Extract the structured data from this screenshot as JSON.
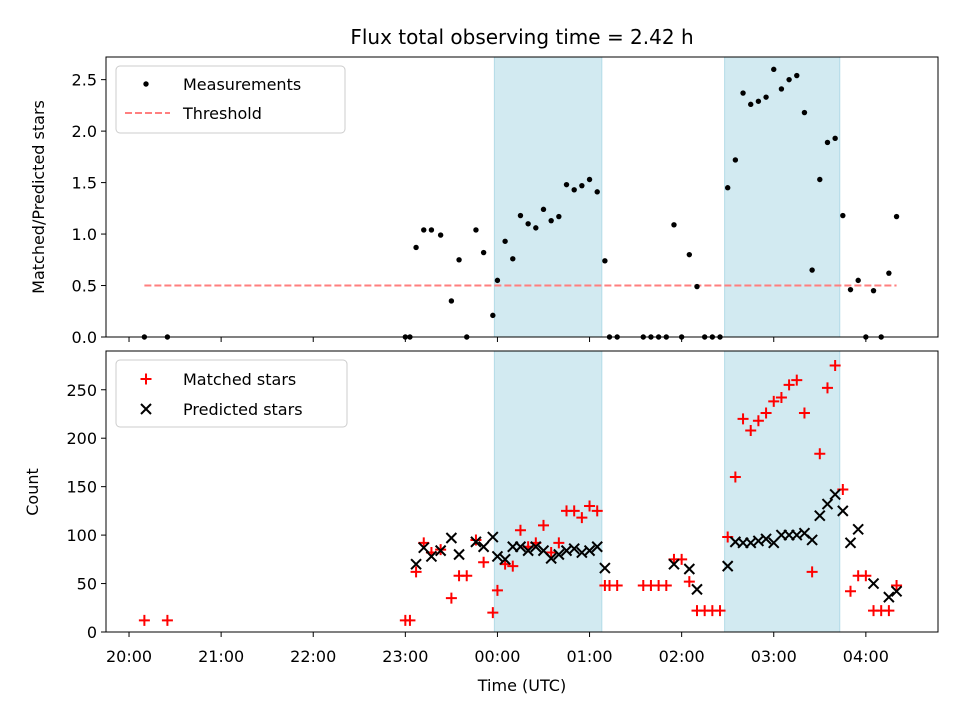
{
  "title": "Flux total observing time = 2.42 h",
  "colors": {
    "band": "#add8e6",
    "measurement": "#000000",
    "threshold": "#ff7f7f",
    "matched": "#ff0000",
    "predicted": "#000000"
  },
  "chart_data": [
    {
      "type": "scatter",
      "panel": "top",
      "ylabel": "Matched/Predicted stars",
      "ylim": [
        0,
        2.72
      ],
      "yticks": [
        "0.0",
        "0.5",
        "1.0",
        "1.5",
        "2.0",
        "2.5"
      ],
      "xlim": [
        "19:45",
        "04:47"
      ],
      "grid": false,
      "legend_position": "upper-left",
      "legend": [
        "Measurements",
        "Threshold"
      ],
      "threshold": {
        "name": "Threshold",
        "y": 0.5,
        "x_range": [
          "20:10",
          "04:20"
        ],
        "style": "dashed"
      },
      "shaded_ranges": [
        [
          "23:58",
          "01:08"
        ],
        [
          "02:28",
          "03:43"
        ]
      ],
      "series": [
        {
          "name": "Measurements",
          "marker": "dot",
          "points": [
            [
              "20:10",
              0.0
            ],
            [
              "20:25",
              0.0
            ],
            [
              "23:00",
              0.0
            ],
            [
              "23:03",
              0.0
            ],
            [
              "23:07",
              0.87
            ],
            [
              "23:12",
              1.04
            ],
            [
              "23:17",
              1.04
            ],
            [
              "23:23",
              0.99
            ],
            [
              "23:30",
              0.35
            ],
            [
              "23:35",
              0.75
            ],
            [
              "23:40",
              0.0
            ],
            [
              "23:46",
              1.04
            ],
            [
              "23:51",
              0.82
            ],
            [
              "23:57",
              0.21
            ],
            [
              "00:00",
              0.55
            ],
            [
              "00:05",
              0.93
            ],
            [
              "00:10",
              0.76
            ],
            [
              "00:15",
              1.18
            ],
            [
              "00:20",
              1.1
            ],
            [
              "00:25",
              1.06
            ],
            [
              "00:30",
              1.24
            ],
            [
              "00:35",
              1.13
            ],
            [
              "00:40",
              1.17
            ],
            [
              "00:45",
              1.48
            ],
            [
              "00:50",
              1.43
            ],
            [
              "00:55",
              1.47
            ],
            [
              "01:00",
              1.53
            ],
            [
              "01:05",
              1.41
            ],
            [
              "01:10",
              0.74
            ],
            [
              "01:13",
              0.0
            ],
            [
              "01:18",
              0.0
            ],
            [
              "01:35",
              0.0
            ],
            [
              "01:40",
              0.0
            ],
            [
              "01:45",
              0.0
            ],
            [
              "01:50",
              0.0
            ],
            [
              "01:55",
              1.09
            ],
            [
              "02:00",
              0.0
            ],
            [
              "02:05",
              0.8
            ],
            [
              "02:10",
              0.49
            ],
            [
              "02:15",
              0.0
            ],
            [
              "02:20",
              0.0
            ],
            [
              "02:25",
              0.0
            ],
            [
              "02:30",
              1.45
            ],
            [
              "02:35",
              1.72
            ],
            [
              "02:40",
              2.37
            ],
            [
              "02:45",
              2.26
            ],
            [
              "02:50",
              2.29
            ],
            [
              "02:55",
              2.33
            ],
            [
              "03:00",
              2.6
            ],
            [
              "03:05",
              2.41
            ],
            [
              "03:10",
              2.5
            ],
            [
              "03:15",
              2.54
            ],
            [
              "03:20",
              2.18
            ],
            [
              "03:25",
              0.65
            ],
            [
              "03:30",
              1.53
            ],
            [
              "03:35",
              1.89
            ],
            [
              "03:40",
              1.93
            ],
            [
              "03:45",
              1.18
            ],
            [
              "03:50",
              0.46
            ],
            [
              "03:55",
              0.55
            ],
            [
              "04:00",
              0.0
            ],
            [
              "04:05",
              0.45
            ],
            [
              "04:10",
              0.0
            ],
            [
              "04:15",
              0.62
            ],
            [
              "04:20",
              1.17
            ]
          ]
        }
      ]
    },
    {
      "type": "scatter",
      "panel": "bottom",
      "xlabel": "Time (UTC)",
      "ylabel": "Count",
      "ylim": [
        0,
        290
      ],
      "yticks": [
        "0",
        "50",
        "100",
        "150",
        "200",
        "250"
      ],
      "xlim": [
        "19:45",
        "04:47"
      ],
      "xticks": [
        "20:00",
        "21:00",
        "22:00",
        "23:00",
        "00:00",
        "01:00",
        "02:00",
        "03:00",
        "04:00"
      ],
      "grid": false,
      "legend_position": "upper-left",
      "legend": [
        "Matched stars",
        "Predicted stars"
      ],
      "shaded_ranges": [
        [
          "23:58",
          "01:08"
        ],
        [
          "02:28",
          "03:43"
        ]
      ],
      "series": [
        {
          "name": "Matched stars",
          "marker": "plus",
          "points": [
            [
              "20:10",
              12
            ],
            [
              "20:25",
              12
            ],
            [
              "23:00",
              12
            ],
            [
              "23:03",
              12
            ],
            [
              "23:07",
              62
            ],
            [
              "23:12",
              92
            ],
            [
              "23:17",
              82
            ],
            [
              "23:23",
              85
            ],
            [
              "23:30",
              35
            ],
            [
              "23:35",
              58
            ],
            [
              "23:40",
              58
            ],
            [
              "23:46",
              95
            ],
            [
              "23:51",
              72
            ],
            [
              "23:57",
              20
            ],
            [
              "00:00",
              43
            ],
            [
              "00:05",
              70
            ],
            [
              "00:10",
              68
            ],
            [
              "00:15",
              105
            ],
            [
              "00:20",
              88
            ],
            [
              "00:25",
              92
            ],
            [
              "00:30",
              110
            ],
            [
              "00:35",
              82
            ],
            [
              "00:40",
              92
            ],
            [
              "00:45",
              125
            ],
            [
              "00:50",
              125
            ],
            [
              "00:55",
              118
            ],
            [
              "01:00",
              130
            ],
            [
              "01:05",
              125
            ],
            [
              "01:10",
              48
            ],
            [
              "01:13",
              48
            ],
            [
              "01:18",
              48
            ],
            [
              "01:35",
              48
            ],
            [
              "01:40",
              48
            ],
            [
              "01:45",
              48
            ],
            [
              "01:50",
              48
            ],
            [
              "01:55",
              75
            ],
            [
              "02:00",
              75
            ],
            [
              "02:05",
              52
            ],
            [
              "02:10",
              22
            ],
            [
              "02:15",
              22
            ],
            [
              "02:20",
              22
            ],
            [
              "02:25",
              22
            ],
            [
              "02:30",
              98
            ],
            [
              "02:35",
              160
            ],
            [
              "02:40",
              220
            ],
            [
              "02:45",
              208
            ],
            [
              "02:50",
              218
            ],
            [
              "02:55",
              226
            ],
            [
              "03:00",
              238
            ],
            [
              "03:05",
              242
            ],
            [
              "03:10",
              255
            ],
            [
              "03:15",
              260
            ],
            [
              "03:20",
              226
            ],
            [
              "03:25",
              62
            ],
            [
              "03:30",
              184
            ],
            [
              "03:35",
              252
            ],
            [
              "03:40",
              275
            ],
            [
              "03:45",
              147
            ],
            [
              "03:50",
              42
            ],
            [
              "03:55",
              58
            ],
            [
              "04:00",
              58
            ],
            [
              "04:05",
              22
            ],
            [
              "04:10",
              22
            ],
            [
              "04:15",
              22
            ],
            [
              "04:20",
              48
            ]
          ]
        },
        {
          "name": "Predicted stars",
          "marker": "x",
          "points": [
            [
              "23:07",
              70
            ],
            [
              "23:12",
              87
            ],
            [
              "23:17",
              78
            ],
            [
              "23:23",
              84
            ],
            [
              "23:30",
              97
            ],
            [
              "23:35",
              80
            ],
            [
              "23:46",
              93
            ],
            [
              "23:51",
              88
            ],
            [
              "23:57",
              98
            ],
            [
              "00:00",
              78
            ],
            [
              "00:05",
              75
            ],
            [
              "00:10",
              88
            ],
            [
              "00:15",
              88
            ],
            [
              "00:20",
              84
            ],
            [
              "00:25",
              88
            ],
            [
              "00:30",
              84
            ],
            [
              "00:35",
              76
            ],
            [
              "00:40",
              80
            ],
            [
              "00:45",
              84
            ],
            [
              "00:50",
              86
            ],
            [
              "00:55",
              82
            ],
            [
              "01:00",
              84
            ],
            [
              "01:05",
              88
            ],
            [
              "01:10",
              66
            ],
            [
              "01:55",
              70
            ],
            [
              "02:05",
              65
            ],
            [
              "02:10",
              44
            ],
            [
              "02:30",
              68
            ],
            [
              "02:35",
              93
            ],
            [
              "02:40",
              92
            ],
            [
              "02:45",
              92
            ],
            [
              "02:50",
              94
            ],
            [
              "02:55",
              96
            ],
            [
              "03:00",
              92
            ],
            [
              "03:05",
              100
            ],
            [
              "03:10",
              100
            ],
            [
              "03:15",
              100
            ],
            [
              "03:20",
              102
            ],
            [
              "03:25",
              95
            ],
            [
              "03:30",
              120
            ],
            [
              "03:35",
              132
            ],
            [
              "03:40",
              142
            ],
            [
              "03:45",
              125
            ],
            [
              "03:50",
              92
            ],
            [
              "03:55",
              106
            ],
            [
              "04:05",
              50
            ],
            [
              "04:15",
              36
            ],
            [
              "04:20",
              42
            ]
          ]
        }
      ]
    }
  ]
}
